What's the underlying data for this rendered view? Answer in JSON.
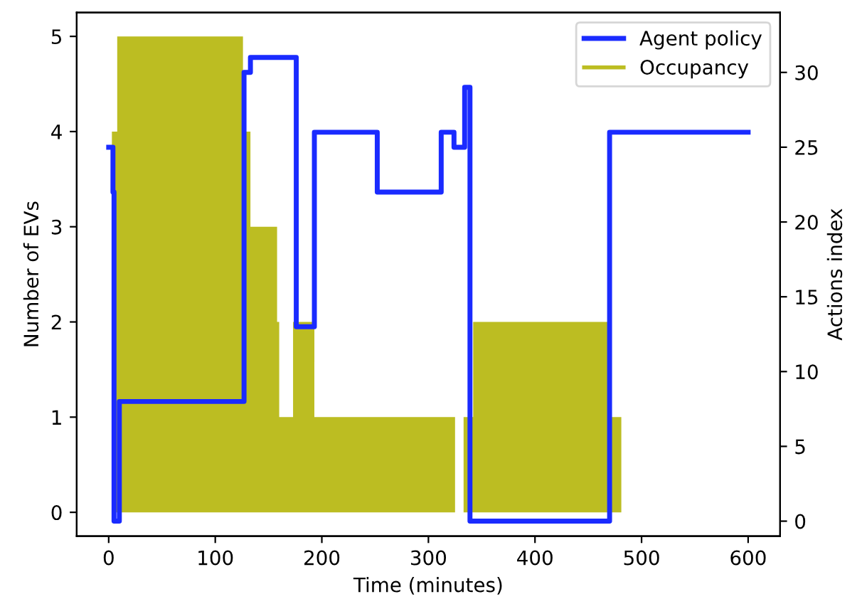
{
  "chart_data": {
    "type": "step",
    "xlabel": "Time (minutes)",
    "ylabel": "Number of EVs",
    "y2label": "Actions index",
    "xlim": [
      -30,
      630
    ],
    "xticks": [
      0,
      100,
      200,
      300,
      400,
      500,
      600
    ],
    "ylim": [
      -0.25,
      5.25
    ],
    "yticks": [
      0,
      1,
      2,
      3,
      4,
      5
    ],
    "y2lim": [
      -1,
      34
    ],
    "y2ticks": [
      0,
      5,
      10,
      15,
      20,
      25,
      30
    ],
    "legend": "top right",
    "grid": false,
    "series": [
      {
        "name": "Agent policy",
        "axis": "y2",
        "color": "#1a2bff",
        "x": [
          0,
          4,
          5,
          10,
          127,
          133,
          176,
          193,
          252,
          312,
          324,
          334,
          339,
          470,
          600
        ],
        "values": [
          25,
          22,
          0,
          8,
          30,
          31,
          13,
          26,
          22,
          26,
          25,
          29,
          0,
          26,
          26
        ]
      },
      {
        "name": "Occupancy",
        "type": "area",
        "axis": "y",
        "color": "#bcbd22",
        "x": [
          0,
          3,
          8,
          126,
          133,
          158,
          160,
          173,
          193,
          325,
          333,
          342,
          469,
          481,
          600
        ],
        "values": [
          0,
          4,
          5,
          4,
          3,
          2,
          1,
          2,
          1,
          0,
          1,
          2,
          1,
          0,
          0
        ]
      }
    ]
  }
}
